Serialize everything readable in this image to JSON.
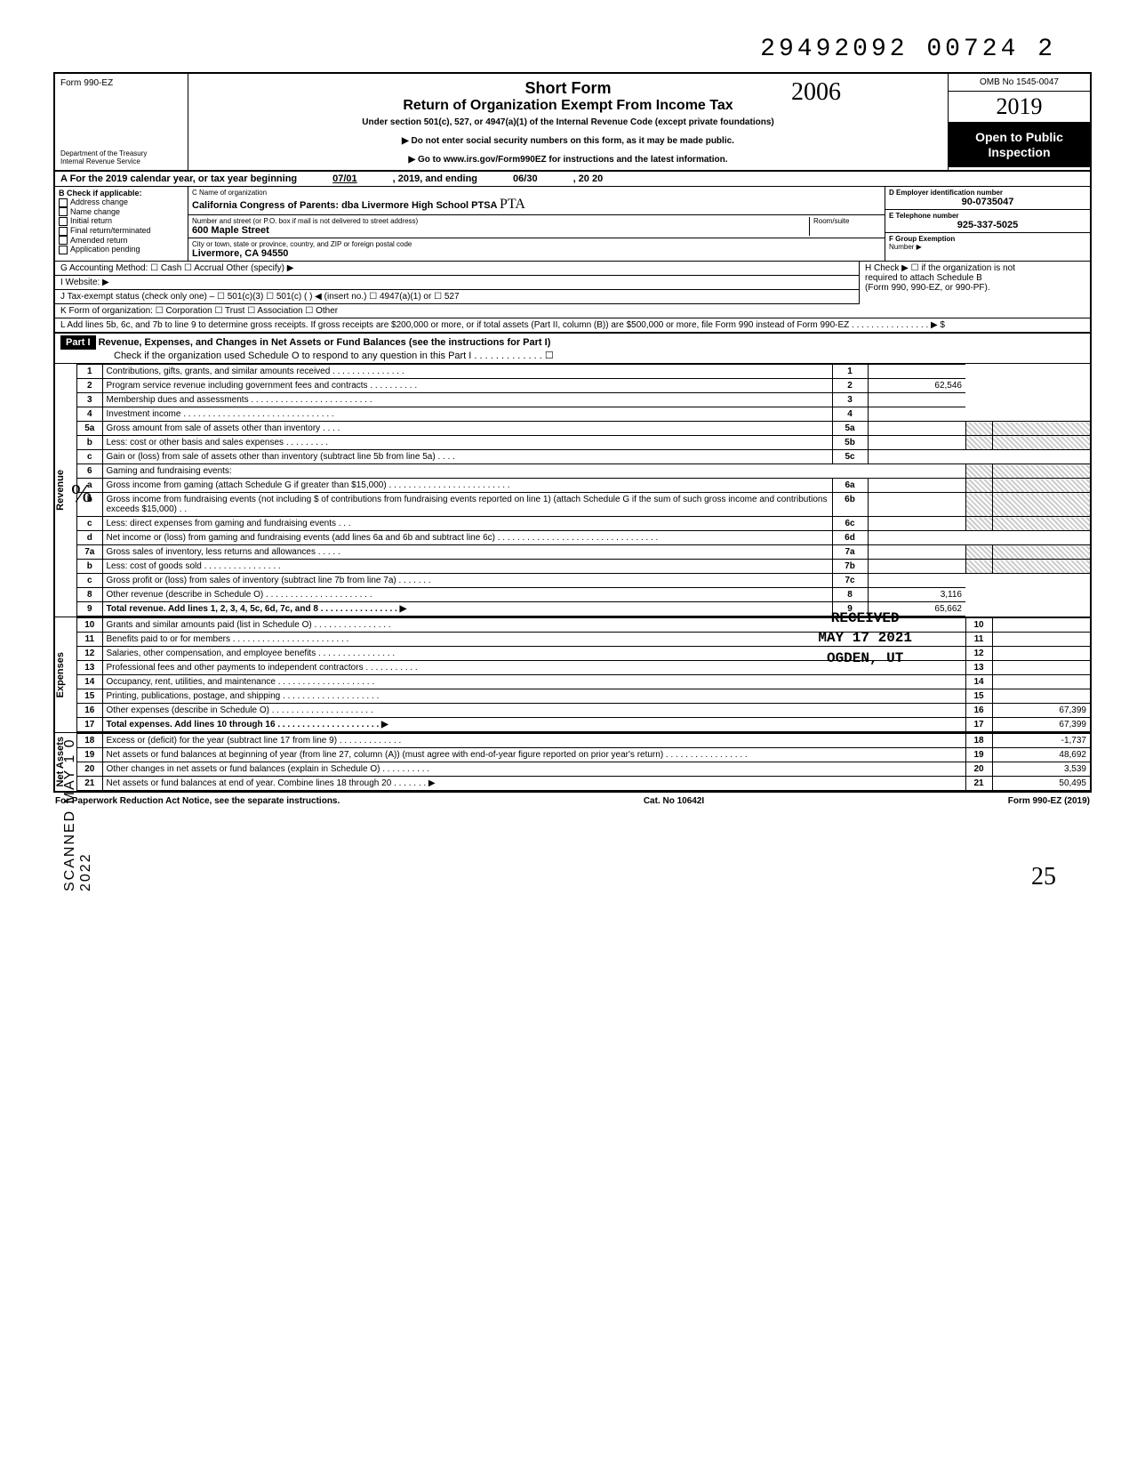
{
  "doc_number": "29492092 00724 2",
  "form": {
    "prefix": "Form",
    "number": "990-EZ",
    "dept1": "Department of the Treasury",
    "dept2": "Internal Revenue Service"
  },
  "header": {
    "title1": "Short Form",
    "title2": "Return of Organization Exempt From Income Tax",
    "sub": "Under section 501(c), 527, or 4947(a)(1) of the Internal Revenue Code (except private foundations)",
    "note1": "▶ Do not enter social security numbers on this form, as it may be made public.",
    "note2": "▶ Go to www.irs.gov/Form990EZ for instructions and the latest information.",
    "hand_year": "2006"
  },
  "rightbox": {
    "omb": "OMB No 1545-0047",
    "year": "2019",
    "inspect1": "Open to Public",
    "inspect2": "Inspection"
  },
  "period": {
    "label_a": "A For the 2019 calendar year, or tax year beginning",
    "begin": "07/01",
    "mid": ", 2019, and ending",
    "end": "06/30",
    "tail": ", 20   20"
  },
  "checkB": {
    "hdr": "B Check if applicable:",
    "items": [
      "Address change",
      "Name change",
      "Initial return",
      "Final return/terminated",
      "Amended return",
      "Application pending"
    ]
  },
  "org": {
    "c_lbl": "C  Name of organization",
    "c_val": "California Congress of Parents: dba Livermore High School PTSA",
    "c_hand": "PTA",
    "street_lbl": "Number and street (or P.O. box if mail is not delivered to street address)",
    "street_val": "600 Maple Street",
    "room_lbl": "Room/suite",
    "city_lbl": "City or town, state or province, country, and ZIP or foreign postal code",
    "city_val": "Livermore, CA 94550"
  },
  "right_info": {
    "d_lbl": "D Employer identification number",
    "d_val": "90-0735047",
    "e_lbl": "E Telephone number",
    "e_val": "925-337-5025",
    "f_lbl": "F Group Exemption",
    "f_lbl2": "Number ▶"
  },
  "meta": {
    "g": "G  Accounting Method:    ☐ Cash    ☐ Accrual    Other (specify) ▶",
    "i": "I   Website: ▶",
    "j": "J  Tax-exempt status (check only one) –  ☐ 501(c)(3)   ☐ 501(c) (        ) ◀ (insert no.) ☐ 4947(a)(1) or   ☐ 527",
    "k": "K  Form of organization:   ☐ Corporation    ☐ Trust    ☐ Association    ☐ Other",
    "l": "L  Add lines 5b, 6c, and 7b to line 9 to determine gross receipts. If gross receipts are $200,000 or more, or if total assets (Part II, column (B)) are $500,000 or more, file Form 990 instead of Form 990-EZ . . . . . . . . . . . . . . . .  ▶  $",
    "h1": "H  Check ▶ ☐ if the organization is not",
    "h2": "required to attach Schedule B",
    "h3": "(Form 990, 990-EZ, or 990-PF)."
  },
  "part1": {
    "hdr": "Part I",
    "title": "Revenue, Expenses, and Changes in Net Assets or Fund Balances (see the instructions for Part I)",
    "check": "Check if the organization used Schedule O to respond to any question in this Part I . . . . . . . . . . . . .  ☐"
  },
  "lines": [
    {
      "n": "1",
      "d": "Contributions, gifts, grants, and similar amounts received . . . . . . . . . . . . . . .",
      "rn": "1",
      "rv": ""
    },
    {
      "n": "2",
      "d": "Program service revenue including government fees and contracts  . . . . . . . . . .",
      "rn": "2",
      "rv": "62,546"
    },
    {
      "n": "3",
      "d": "Membership dues and assessments . . . . . . . . . . . . . . . . . . . . . . . . .",
      "rn": "3",
      "rv": ""
    },
    {
      "n": "4",
      "d": "Investment income  . . . . . . . . . . . . . . . . . . . . . . . . . . . . . . .",
      "rn": "4",
      "rv": ""
    }
  ],
  "lines5": {
    "a": {
      "n": "5a",
      "d": "Gross amount from sale of assets other than inventory  . . . .",
      "sn": "5a"
    },
    "b": {
      "n": "b",
      "d": "Less: cost or other basis and sales expenses . . . . . . . . .",
      "sn": "5b"
    },
    "c": {
      "n": "c",
      "d": "Gain or (loss) from sale of assets other than inventory (subtract line 5b from line 5a) . . . .",
      "rn": "5c",
      "rv": ""
    }
  },
  "lines6": {
    "hdr": {
      "n": "6",
      "d": "Gaming and fundraising events:"
    },
    "a": {
      "n": "a",
      "d": "Gross income from gaming (attach Schedule G if greater than $15,000) . . . . . . . . . . . . . . . . . . . . . . . . .",
      "sn": "6a"
    },
    "b": {
      "n": "b",
      "d": "Gross income from fundraising events (not including  $                    of contributions from fundraising events reported on line 1) (attach Schedule G if the sum of such gross income and contributions exceeds $15,000) . .",
      "sn": "6b"
    },
    "c": {
      "n": "c",
      "d": "Less: direct expenses from gaming and fundraising events   . . .",
      "sn": "6c"
    },
    "d": {
      "n": "d",
      "d": "Net income or (loss) from gaming and fundraising events (add lines 6a and 6b and subtract line 6c)  . . . . . . . . . . . . . . . . . . . . . . . . . . . . . . . . .",
      "rn": "6d",
      "rv": ""
    }
  },
  "lines7": {
    "a": {
      "n": "7a",
      "d": "Gross sales of inventory, less returns and allowances . . . . .",
      "sn": "7a"
    },
    "b": {
      "n": "b",
      "d": "Less: cost of goods sold   . . . . . . . . . . . . . . . .",
      "sn": "7b"
    },
    "c": {
      "n": "c",
      "d": "Gross profit or (loss) from sales of inventory (subtract line 7b from line 7a)  . . . . . . .",
      "rn": "7c",
      "rv": ""
    }
  },
  "lines_end": [
    {
      "n": "8",
      "d": "Other revenue (describe in Schedule O) . . . . . . . . . . . . . . . . . . . . . .",
      "rn": "8",
      "rv": "3,116"
    },
    {
      "n": "9",
      "d": "Total revenue. Add lines 1, 2, 3, 4, 5c, 6d, 7c, and 8  . . . . . . . . . . . . . . . .  ▶",
      "rn": "9",
      "rv": "65,662",
      "bold": true
    }
  ],
  "exp_lines": [
    {
      "n": "10",
      "d": "Grants and similar amounts paid (list in Schedule O)  . . . . . . . . . . . . . . . .",
      "rn": "10",
      "rv": ""
    },
    {
      "n": "11",
      "d": "Benefits paid to or for members  . . . . . . . . . . . . . . . . . . . . . . . .",
      "rn": "11",
      "rv": ""
    },
    {
      "n": "12",
      "d": "Salaries, other compensation, and employee benefits . . . . . . . . . . . . . . . .",
      "rn": "12",
      "rv": ""
    },
    {
      "n": "13",
      "d": "Professional fees and other payments to independent contractors . . . . . . . . . . .",
      "rn": "13",
      "rv": ""
    },
    {
      "n": "14",
      "d": "Occupancy, rent, utilities, and maintenance  . . . . . . . . . . . . . . . . . . . .",
      "rn": "14",
      "rv": ""
    },
    {
      "n": "15",
      "d": "Printing, publications, postage, and shipping . . . . . . . . . . . . . . . . . . . .",
      "rn": "15",
      "rv": ""
    },
    {
      "n": "16",
      "d": "Other expenses (describe in Schedule O)  . . . . . . . . . . . . . . . . . . . . .",
      "rn": "16",
      "rv": "67,399"
    },
    {
      "n": "17",
      "d": "Total expenses. Add lines 10 through 16  . . . . . . . . . . . . . . . . . . . . .  ▶",
      "rn": "17",
      "rv": "67,399",
      "bold": true
    }
  ],
  "na_lines": [
    {
      "n": "18",
      "d": "Excess or (deficit) for the year (subtract line 17 from line 9)  . . . . . . . . . . . . .",
      "rn": "18",
      "rv": "-1,737"
    },
    {
      "n": "19",
      "d": "Net assets or fund balances at beginning of year (from line 27, column (A)) (must agree with end-of-year figure reported on prior year's return)   . . . . . . . . . . . . . . . . .",
      "rn": "19",
      "rv": "48,692"
    },
    {
      "n": "20",
      "d": "Other changes in net assets or fund balances (explain in Schedule O) . . . . . . . . . .",
      "rn": "20",
      "rv": "3,539"
    },
    {
      "n": "21",
      "d": "Net assets or fund balances at end of year. Combine lines 18 through 20  . . . . . . .  ▶",
      "rn": "21",
      "rv": "50,495"
    }
  ],
  "sections": {
    "rev": "Revenue",
    "exp": "Expenses",
    "na": "Net Assets"
  },
  "stamps": {
    "received": "RECEIVED",
    "date": "MAY 17 2021",
    "loc": "OGDEN, UT",
    "side": "SCANNED MAY 1 0 2022"
  },
  "footer": {
    "left": "For Paperwork Reduction Act Notice, see the separate instructions.",
    "mid": "Cat. No  10642I",
    "right": "Form 990-EZ (2019)"
  },
  "page_num": "25"
}
